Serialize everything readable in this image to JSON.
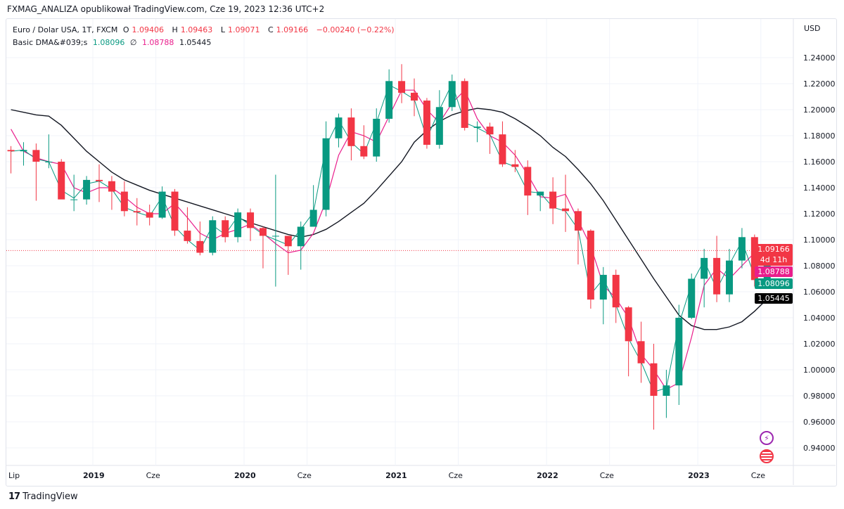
{
  "publisher_line": "FXMAG_ANALIZA opublikował TradingView.com, Cze 19, 2023 12:36 UTC+2",
  "legend": {
    "symbol": "Euro / Dolar USA, 1T, FXCM",
    "o_label": "O",
    "o": "1.09406",
    "h_label": "H",
    "h": "1.09463",
    "l_label": "L",
    "l": "1.09071",
    "c_label": "C",
    "c": "1.09166",
    "change": "−0.00240 (−0.22%)",
    "indicator": "Basic DMA&#039;s",
    "ma_fast": "1.08096",
    "ma_symbol": "∅",
    "ma_mid": "1.08788",
    "ma_slow": "1.05445"
  },
  "currency": "USD",
  "badges": {
    "price": "1.09166",
    "countdown": "4d 11h",
    "ma_mid": "1.08788",
    "ma_fast": "1.08096",
    "ma_slow": "1.05445"
  },
  "footer": {
    "logo": "TV",
    "brand": "TradingView"
  },
  "icons": [
    "lightning-event-icon",
    "us-flag-event-icon"
  ],
  "colors": {
    "up": "#089981",
    "down": "#f23645",
    "ma_fast": "#089981",
    "ma_mid": "#e91e8c",
    "ma_slow": "#131722",
    "grid": "#f0f3fa"
  },
  "chart_data": {
    "type": "candlestick",
    "ylim": [
      0.93,
      1.25
    ],
    "grid": true,
    "y_ticks": [
      "1.24000",
      "1.22000",
      "1.20000",
      "1.18000",
      "1.16000",
      "1.14000",
      "1.12000",
      "1.10000",
      "1.08000",
      "1.06000",
      "1.04000",
      "1.02000",
      "1.00000",
      "0.98000",
      "0.96000",
      "0.94000"
    ],
    "x_ticks": [
      {
        "label": "Lip",
        "date": "2018-07",
        "bold": false
      },
      {
        "label": "2019",
        "date": "2019-01",
        "bold": true
      },
      {
        "label": "Cze",
        "date": "2019-06",
        "bold": false
      },
      {
        "label": "2020",
        "date": "2020-01",
        "bold": true
      },
      {
        "label": "Cze",
        "date": "2020-06",
        "bold": false
      },
      {
        "label": "2021",
        "date": "2021-01",
        "bold": true
      },
      {
        "label": "Cze",
        "date": "2021-06",
        "bold": false
      },
      {
        "label": "2022",
        "date": "2022-01",
        "bold": true
      },
      {
        "label": "Cze",
        "date": "2022-06",
        "bold": false
      },
      {
        "label": "2023",
        "date": "2023-01",
        "bold": true
      },
      {
        "label": "Cze",
        "date": "2023-06",
        "bold": false
      }
    ],
    "last_price": 1.09166,
    "ohlc": [
      [
        "2018-06",
        1.169,
        1.172,
        1.151,
        1.168
      ],
      [
        "2018-07",
        1.168,
        1.175,
        1.157,
        1.169
      ],
      [
        "2018-08",
        1.169,
        1.174,
        1.13,
        1.16
      ],
      [
        "2018-09",
        1.16,
        1.181,
        1.155,
        1.16
      ],
      [
        "2018-10",
        1.16,
        1.162,
        1.132,
        1.131
      ],
      [
        "2018-11",
        1.131,
        1.15,
        1.122,
        1.131
      ],
      [
        "2018-12",
        1.131,
        1.149,
        1.127,
        1.146
      ],
      [
        "2019-01",
        1.146,
        1.158,
        1.129,
        1.145
      ],
      [
        "2019-02",
        1.145,
        1.149,
        1.123,
        1.137
      ],
      [
        "2019-03",
        1.137,
        1.145,
        1.118,
        1.122
      ],
      [
        "2019-04",
        1.122,
        1.132,
        1.111,
        1.121
      ],
      [
        "2019-05",
        1.121,
        1.127,
        1.111,
        1.117
      ],
      [
        "2019-06",
        1.117,
        1.141,
        1.116,
        1.137
      ],
      [
        "2019-07",
        1.137,
        1.139,
        1.103,
        1.107
      ],
      [
        "2019-08",
        1.107,
        1.125,
        1.097,
        1.099
      ],
      [
        "2019-09",
        1.099,
        1.114,
        1.088,
        1.09
      ],
      [
        "2019-10",
        1.09,
        1.118,
        1.088,
        1.115
      ],
      [
        "2019-11",
        1.115,
        1.118,
        1.098,
        1.102
      ],
      [
        "2019-12",
        1.102,
        1.124,
        1.098,
        1.121
      ],
      [
        "2020-01",
        1.121,
        1.124,
        1.099,
        1.109
      ],
      [
        "2020-02",
        1.109,
        1.11,
        1.078,
        1.103
      ],
      [
        "2020-03",
        1.103,
        1.15,
        1.064,
        1.103
      ],
      [
        "2020-04",
        1.103,
        1.102,
        1.073,
        1.095
      ],
      [
        "2020-05",
        1.095,
        1.114,
        1.077,
        1.11
      ],
      [
        "2020-06",
        1.11,
        1.142,
        1.111,
        1.123
      ],
      [
        "2020-07",
        1.123,
        1.191,
        1.118,
        1.178
      ],
      [
        "2020-08",
        1.178,
        1.197,
        1.171,
        1.194
      ],
      [
        "2020-09",
        1.194,
        1.201,
        1.161,
        1.172
      ],
      [
        "2020-10",
        1.172,
        1.188,
        1.162,
        1.164
      ],
      [
        "2020-11",
        1.164,
        1.201,
        1.16,
        1.193
      ],
      [
        "2020-12",
        1.193,
        1.231,
        1.19,
        1.222
      ],
      [
        "2021-01",
        1.222,
        1.235,
        1.205,
        1.213
      ],
      [
        "2021-02",
        1.213,
        1.224,
        1.195,
        1.207
      ],
      [
        "2021-03",
        1.207,
        1.209,
        1.17,
        1.173
      ],
      [
        "2021-04",
        1.173,
        1.215,
        1.17,
        1.202
      ],
      [
        "2021-05",
        1.202,
        1.227,
        1.199,
        1.222
      ],
      [
        "2021-06",
        1.222,
        1.224,
        1.184,
        1.186
      ],
      [
        "2021-07",
        1.186,
        1.191,
        1.175,
        1.187
      ],
      [
        "2021-08",
        1.187,
        1.19,
        1.166,
        1.181
      ],
      [
        "2021-09",
        1.181,
        1.191,
        1.156,
        1.158
      ],
      [
        "2021-10",
        1.158,
        1.169,
        1.152,
        1.156
      ],
      [
        "2021-11",
        1.156,
        1.161,
        1.119,
        1.134
      ],
      [
        "2021-12",
        1.134,
        1.137,
        1.122,
        1.137
      ],
      [
        "2022-01",
        1.137,
        1.148,
        1.112,
        1.124
      ],
      [
        "2022-02",
        1.124,
        1.15,
        1.106,
        1.122
      ],
      [
        "2022-03",
        1.122,
        1.124,
        1.081,
        1.107
      ],
      [
        "2022-04",
        1.107,
        1.108,
        1.047,
        1.054
      ],
      [
        "2022-05",
        1.054,
        1.079,
        1.035,
        1.073
      ],
      [
        "2022-06",
        1.073,
        1.077,
        1.036,
        1.048
      ],
      [
        "2022-07",
        1.048,
        1.049,
        0.995,
        1.022
      ],
      [
        "2022-08",
        1.022,
        1.037,
        0.99,
        1.005
      ],
      [
        "2022-09",
        1.005,
        1.02,
        0.954,
        0.98
      ],
      [
        "2022-10",
        0.98,
        1.0,
        0.963,
        0.988
      ],
      [
        "2022-11",
        0.988,
        1.05,
        0.973,
        1.04
      ],
      [
        "2022-12",
        1.04,
        1.074,
        1.039,
        1.07
      ],
      [
        "2023-01",
        1.07,
        1.093,
        1.048,
        1.086
      ],
      [
        "2023-02",
        1.086,
        1.103,
        1.052,
        1.058
      ],
      [
        "2023-03",
        1.058,
        1.093,
        1.052,
        1.084
      ],
      [
        "2023-04",
        1.084,
        1.109,
        1.078,
        1.102
      ],
      [
        "2023-05",
        1.102,
        1.104,
        1.064,
        1.069
      ],
      [
        "2023-06",
        1.069,
        1.095,
        1.063,
        1.0917
      ]
    ],
    "series": [
      {
        "key": "ma_slow",
        "values": [
          1.2,
          1.198,
          1.196,
          1.195,
          1.188,
          1.178,
          1.168,
          1.16,
          1.152,
          1.146,
          1.142,
          1.138,
          1.135,
          1.132,
          1.129,
          1.126,
          1.123,
          1.12,
          1.117,
          1.113,
          1.11,
          1.107,
          1.104,
          1.102,
          1.104,
          1.108,
          1.114,
          1.121,
          1.128,
          1.138,
          1.149,
          1.16,
          1.175,
          1.184,
          1.191,
          1.196,
          1.199,
          1.201,
          1.2,
          1.198,
          1.193,
          1.187,
          1.18,
          1.171,
          1.164,
          1.154,
          1.143,
          1.13,
          1.115,
          1.1,
          1.085,
          1.07,
          1.056,
          1.042,
          1.034,
          1.031,
          1.031,
          1.033,
          1.037,
          1.045,
          1.0545
        ]
      },
      {
        "key": "ma_mid",
        "values": [
          1.185,
          1.168,
          1.163,
          1.16,
          1.158,
          1.14,
          1.136,
          1.14,
          1.14,
          1.133,
          1.125,
          1.12,
          1.12,
          1.128,
          1.117,
          1.105,
          1.1,
          1.105,
          1.108,
          1.112,
          1.105,
          1.097,
          1.09,
          1.092,
          1.105,
          1.13,
          1.165,
          1.183,
          1.18,
          1.175,
          1.195,
          1.215,
          1.215,
          1.2,
          1.19,
          1.205,
          1.215,
          1.193,
          1.18,
          1.175,
          1.165,
          1.15,
          1.133,
          1.132,
          1.135,
          1.115,
          1.095,
          1.065,
          1.055,
          1.04,
          1.012,
          1.0,
          0.985,
          0.99,
          1.025,
          1.065,
          1.078,
          1.07,
          1.08,
          1.09,
          1.0879
        ]
      },
      {
        "key": "ma_fast",
        "values": [
          1.168,
          1.169,
          1.162,
          1.16,
          1.138,
          1.132,
          1.143,
          1.145,
          1.139,
          1.125,
          1.121,
          1.118,
          1.133,
          1.11,
          1.1,
          1.092,
          1.111,
          1.104,
          1.118,
          1.111,
          1.104,
          1.1,
          1.096,
          1.108,
          1.121,
          1.172,
          1.192,
          1.175,
          1.166,
          1.19,
          1.219,
          1.214,
          1.208,
          1.178,
          1.2,
          1.22,
          1.19,
          1.186,
          1.181,
          1.16,
          1.156,
          1.137,
          1.136,
          1.125,
          1.122,
          1.108,
          1.058,
          1.07,
          1.05,
          1.024,
          1.006,
          0.983,
          0.986,
          1.035,
          1.066,
          1.084,
          1.062,
          1.081,
          1.099,
          1.072,
          1.081
        ]
      }
    ]
  }
}
